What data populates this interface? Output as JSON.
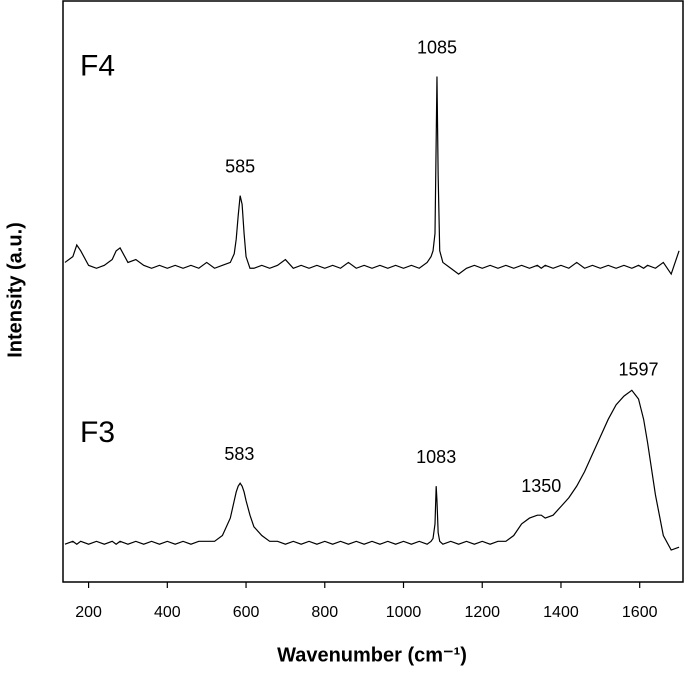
{
  "chart_data": {
    "type": "line",
    "xlabel": "Wavenumber (cm⁻¹)",
    "ylabel": "Intensity (a.u.)",
    "xlim": [
      135,
      1710
    ],
    "ylim": [
      0,
      100
    ],
    "xticks": [
      200,
      400,
      600,
      800,
      1000,
      1200,
      1400,
      1600
    ],
    "x": [
      140,
      160,
      170,
      180,
      200,
      220,
      240,
      260,
      270,
      280,
      300,
      320,
      340,
      360,
      380,
      400,
      420,
      440,
      460,
      480,
      500,
      520,
      540,
      560,
      570,
      575,
      580,
      585,
      590,
      595,
      600,
      610,
      620,
      640,
      660,
      680,
      700,
      720,
      740,
      760,
      780,
      800,
      820,
      840,
      860,
      880,
      900,
      920,
      940,
      960,
      980,
      1000,
      1020,
      1040,
      1060,
      1070,
      1075,
      1080,
      1083,
      1085,
      1088,
      1092,
      1100,
      1120,
      1140,
      1160,
      1180,
      1200,
      1220,
      1240,
      1260,
      1280,
      1300,
      1320,
      1340,
      1350,
      1360,
      1380,
      1400,
      1420,
      1440,
      1460,
      1480,
      1500,
      1520,
      1540,
      1560,
      1580,
      1597,
      1610,
      1620,
      1640,
      1660,
      1680,
      1700
    ],
    "series": [
      {
        "name": "F4",
        "color": "#000000",
        "values": [
          55,
          56,
          58,
          57,
          54.5,
          54,
          54.5,
          55.5,
          57,
          57.5,
          55,
          55.5,
          54.5,
          54,
          54.5,
          54,
          54.5,
          54,
          54.5,
          54,
          55,
          54,
          54.5,
          55,
          56.5,
          59,
          63,
          66.5,
          65,
          60,
          56,
          54,
          54,
          54.5,
          54,
          54.5,
          55.5,
          54,
          54.5,
          54,
          54.5,
          54,
          54.5,
          54,
          55,
          54,
          54.5,
          54,
          54.5,
          54,
          54.5,
          54,
          54.5,
          54,
          55,
          56,
          57,
          60,
          76,
          87,
          70,
          57,
          55,
          54,
          53,
          54,
          54.5,
          54,
          54.5,
          54,
          54.5,
          54,
          54.5,
          54,
          54.5,
          54,
          54.5,
          54,
          54.5,
          54,
          55,
          54,
          54.5,
          54,
          54.5,
          54,
          54.5,
          54,
          54.5,
          54,
          54.5,
          54,
          55,
          53,
          57
        ]
      },
      {
        "name": "F3",
        "color": "#000000",
        "values": [
          6.5,
          7,
          6.5,
          7,
          6.5,
          7,
          6.5,
          7,
          6.5,
          7,
          6.5,
          7,
          6.5,
          7,
          6.5,
          7,
          6.5,
          7,
          6.5,
          7,
          7,
          7,
          8,
          11,
          14,
          15.5,
          16.5,
          17,
          16.5,
          15.5,
          14,
          11.5,
          9.5,
          8,
          7,
          7,
          6.5,
          7,
          6.5,
          7,
          6.5,
          7,
          6.5,
          7,
          6.5,
          7,
          6.5,
          7,
          6.5,
          7,
          6.5,
          7,
          6.5,
          7,
          6.5,
          7,
          7.5,
          10,
          16.5,
          14,
          8.5,
          7,
          6.5,
          7,
          6.5,
          7,
          6.5,
          7,
          6.5,
          7,
          7,
          8,
          10,
          11,
          11.5,
          11.5,
          11,
          11.5,
          13,
          14.5,
          16.5,
          19,
          22,
          25,
          28,
          30.5,
          32,
          33,
          31.5,
          28,
          24,
          15,
          8,
          5.5,
          6
        ]
      }
    ],
    "annotations": [
      {
        "text": "585",
        "x": 585,
        "series": 0
      },
      {
        "text": "1085",
        "x": 1085,
        "series": 0
      },
      {
        "text": "583",
        "x": 583,
        "series": 1
      },
      {
        "text": "1083",
        "x": 1083,
        "series": 1
      },
      {
        "text": "1350",
        "x": 1350,
        "series": 1
      },
      {
        "text": "1597",
        "x": 1597,
        "series": 1
      }
    ]
  }
}
